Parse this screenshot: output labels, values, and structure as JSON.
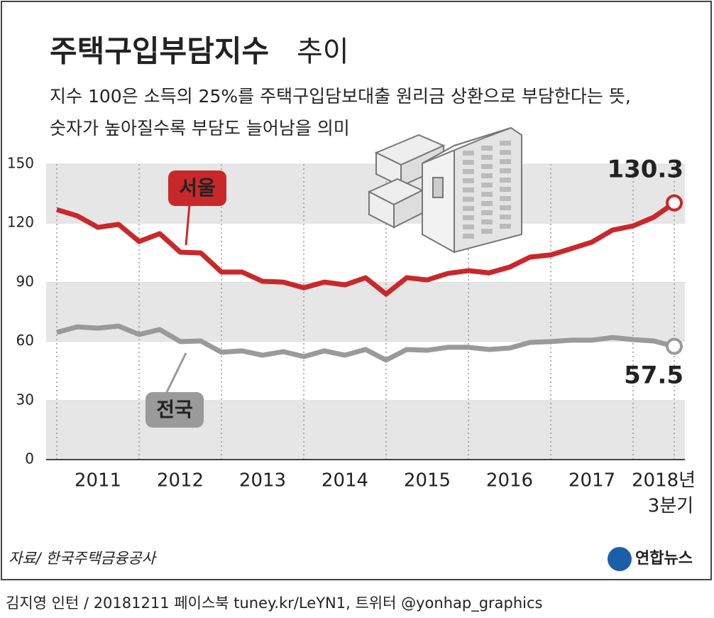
{
  "chart_data": {
    "type": "line",
    "title": "주택구입부담지수",
    "title_light": "추이",
    "subtitle": [
      "지수 100은 소득의 25%를 주택구입담보대출 원리금 상환으로 부담한다는 뜻,",
      "숫자가 높아질수록 부담도 늘어남을 의미"
    ],
    "categories": [
      null,
      null,
      null,
      null,
      null,
      null,
      null,
      null,
      null,
      null,
      null,
      null,
      null,
      null,
      null,
      null,
      null,
      null,
      null,
      null,
      null,
      null,
      null,
      null,
      null,
      null,
      null,
      null,
      null,
      null,
      "2018년 3분기"
    ],
    "last_label_lines": [
      "2018년",
      "3분기"
    ],
    "year_groups": [
      "2011",
      "2012",
      "2013",
      "2014",
      "2015",
      "2016",
      "2017"
    ],
    "series": [
      {
        "name": "서울",
        "color": "#c9282b",
        "values": [
          126.9,
          123.7,
          117.9,
          119.4,
          110.7,
          114.7,
          105.3,
          104.9,
          95.2,
          95.2,
          90.5,
          90.1,
          87.2,
          90.1,
          88.7,
          92.3,
          84.0,
          92.3,
          91.2,
          94.5,
          95.9,
          94.8,
          97.7,
          102.8,
          103.9,
          107.1,
          110.4,
          116.5,
          118.6,
          123.0,
          130.3
        ],
        "value_labels": [
          null,
          null,
          null,
          null,
          null,
          null,
          null,
          null,
          null,
          null,
          null,
          null,
          null,
          null,
          null,
          null,
          null,
          null,
          null,
          null,
          null,
          null,
          null,
          null,
          null,
          null,
          null,
          null,
          null,
          null,
          "130.3"
        ]
      },
      {
        "name": "전국",
        "color": "#9a9a9a",
        "values": [
          64.6,
          67.4,
          66.7,
          67.8,
          63.5,
          66.0,
          59.9,
          60.2,
          54.5,
          55.2,
          53.0,
          54.8,
          52.3,
          55.2,
          53.0,
          55.9,
          50.5,
          55.9,
          55.5,
          57.0,
          57.0,
          55.9,
          56.6,
          59.5,
          59.9,
          60.6,
          60.6,
          62.0,
          60.9,
          60.2,
          57.5
        ],
        "value_labels": [
          null,
          null,
          null,
          null,
          null,
          null,
          null,
          null,
          null,
          null,
          null,
          null,
          null,
          null,
          null,
          null,
          null,
          null,
          null,
          null,
          null,
          null,
          null,
          null,
          null,
          null,
          null,
          null,
          null,
          null,
          "57.5"
        ]
      }
    ],
    "ylim": [
      0,
      150
    ],
    "yticks": [
      0,
      30,
      60,
      90,
      120,
      150
    ],
    "bands": true,
    "source": "자료/ 한국주택금융공사",
    "logo": "연합뉴스",
    "credit": "김지영 인턴 / 20181211 페이스북 tuney.kr/LeYN1, 트위터 @yonhap_graphics"
  }
}
